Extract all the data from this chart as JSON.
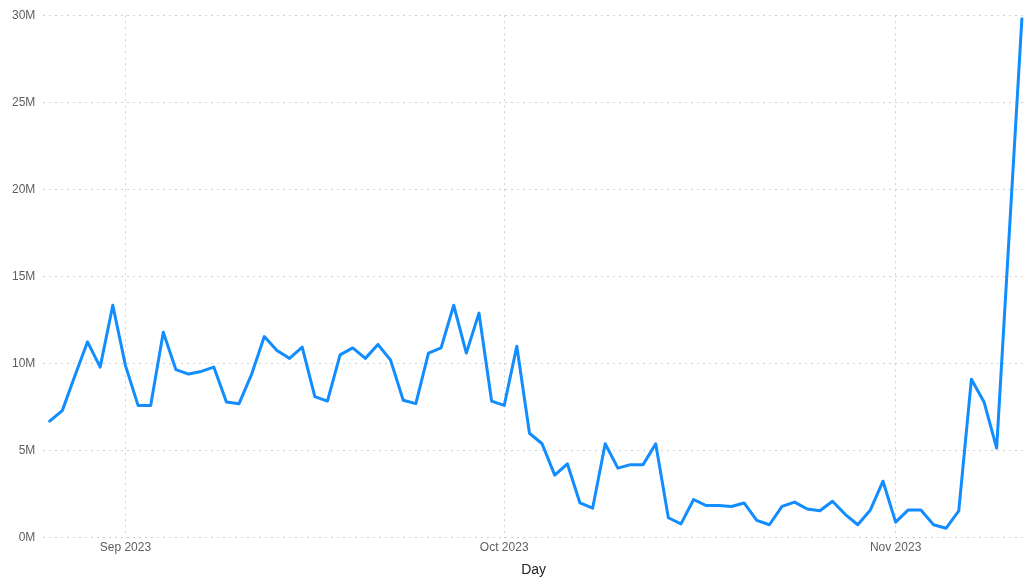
{
  "chart_data": {
    "type": "line",
    "xlabel": "Day",
    "grid": true,
    "legend": false,
    "marker": "none",
    "line_style": "solid",
    "x": [
      "2023-08-26",
      "2023-08-27",
      "2023-08-28",
      "2023-08-29",
      "2023-08-30",
      "2023-08-31",
      "2023-09-01",
      "2023-09-02",
      "2023-09-03",
      "2023-09-04",
      "2023-09-05",
      "2023-09-06",
      "2023-09-07",
      "2023-09-08",
      "2023-09-09",
      "2023-09-10",
      "2023-09-11",
      "2023-09-12",
      "2023-09-13",
      "2023-09-14",
      "2023-09-15",
      "2023-09-16",
      "2023-09-17",
      "2023-09-18",
      "2023-09-19",
      "2023-09-20",
      "2023-09-21",
      "2023-09-22",
      "2023-09-23",
      "2023-09-24",
      "2023-09-25",
      "2023-09-26",
      "2023-09-27",
      "2023-09-28",
      "2023-09-29",
      "2023-09-30",
      "2023-10-01",
      "2023-10-02",
      "2023-10-03",
      "2023-10-04",
      "2023-10-05",
      "2023-10-06",
      "2023-10-07",
      "2023-10-08",
      "2023-10-09",
      "2023-10-10",
      "2023-10-11",
      "2023-10-12",
      "2023-10-13",
      "2023-10-14",
      "2023-10-15",
      "2023-10-16",
      "2023-10-17",
      "2023-10-18",
      "2023-10-19",
      "2023-10-20",
      "2023-10-21",
      "2023-10-22",
      "2023-10-23",
      "2023-10-24",
      "2023-10-25",
      "2023-10-26",
      "2023-10-27",
      "2023-10-28",
      "2023-10-29",
      "2023-10-30",
      "2023-10-31",
      "2023-11-01",
      "2023-11-02",
      "2023-11-03",
      "2023-11-04",
      "2023-11-05",
      "2023-11-06",
      "2023-11-07",
      "2023-11-08",
      "2023-11-09",
      "2023-11-11"
    ],
    "series": [
      {
        "color": "#118dff",
        "values": [
          6.7,
          7.3,
          9.3,
          11.25,
          9.8,
          13.35,
          9.9,
          7.6,
          7.6,
          11.8,
          9.65,
          9.4,
          9.55,
          9.8,
          7.8,
          7.7,
          9.4,
          11.55,
          10.75,
          10.3,
          10.95,
          8.1,
          7.85,
          10.5,
          10.9,
          10.3,
          11.1,
          10.2,
          7.9,
          7.7,
          10.6,
          10.9,
          13.35,
          10.6,
          12.9,
          7.85,
          7.6,
          11.0,
          6.0,
          5.4,
          3.6,
          4.25,
          2.0,
          1.7,
          5.4,
          4.0,
          4.2,
          4.2,
          5.4,
          1.15,
          0.8,
          2.2,
          1.85,
          1.85,
          1.8,
          2.0,
          1.0,
          0.75,
          1.8,
          2.05,
          1.65,
          1.55,
          2.1,
          1.35,
          0.75,
          1.6,
          3.25,
          0.9,
          1.6,
          1.6,
          0.75,
          0.55,
          1.55,
          9.1,
          7.8,
          5.15,
          29.8
        ]
      }
    ],
    "xlim": [
      "2023-08-25T12:00",
      "2023-11-11T04:00"
    ],
    "xticks": [
      {
        "value": "2023-09-01",
        "label": "Sep 2023"
      },
      {
        "value": "2023-10-01",
        "label": "Oct 2023"
      },
      {
        "value": "2023-11-01",
        "label": "Nov 2023"
      }
    ],
    "ylim": [
      0,
      30
    ],
    "yticks": [
      {
        "value": 0,
        "label": "0M"
      },
      {
        "value": 5,
        "label": "5M"
      },
      {
        "value": 10,
        "label": "10M"
      },
      {
        "value": 15,
        "label": "15M"
      },
      {
        "value": 20,
        "label": "20M"
      },
      {
        "value": 25,
        "label": "25M"
      },
      {
        "value": 30,
        "label": "30M"
      }
    ]
  }
}
